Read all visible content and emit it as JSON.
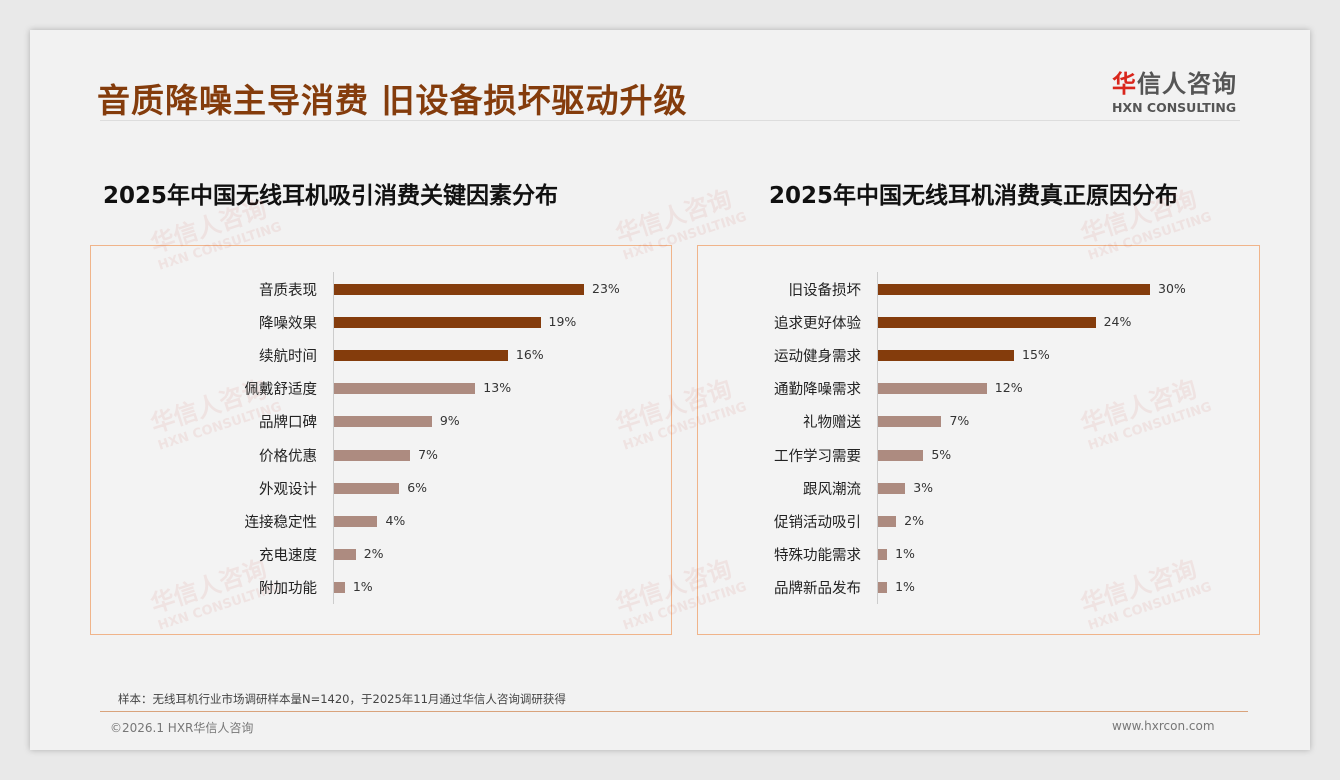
{
  "header": {
    "title": "音质降噪主导消费 旧设备损坏驱动升级",
    "logo_cn_red": "华",
    "logo_cn": "信人咨询",
    "logo_en": "HXN CONSULTING"
  },
  "watermark": {
    "cn": "华信人咨询",
    "en": "HXN CONSULTING"
  },
  "colors": {
    "dark": "#843c0c",
    "light": "#ad8b80"
  },
  "chart_data": [
    {
      "type": "bar",
      "orientation": "horizontal",
      "title": "2025年中国无线耳机吸引消费关键因素分布",
      "categories": [
        "音质表现",
        "降噪效果",
        "续航时间",
        "佩戴舒适度",
        "品牌口碑",
        "价格优惠",
        "外观设计",
        "连接稳定性",
        "充电速度",
        "附加功能"
      ],
      "values": [
        23,
        19,
        16,
        13,
        9,
        7,
        6,
        4,
        2,
        1
      ],
      "labels": [
        "23%",
        "19%",
        "16%",
        "13%",
        "9%",
        "7%",
        "6%",
        "4%",
        "2%",
        "1%"
      ],
      "highlight_count": 3,
      "unit": "%"
    },
    {
      "type": "bar",
      "orientation": "horizontal",
      "title": "2025年中国无线耳机消费真正原因分布",
      "categories": [
        "旧设备损坏",
        "追求更好体验",
        "运动健身需求",
        "通勤降噪需求",
        "礼物赠送",
        "工作学习需要",
        "跟风潮流",
        "促销活动吸引",
        "特殊功能需求",
        "品牌新品发布"
      ],
      "values": [
        30,
        24,
        15,
        12,
        7,
        5,
        3,
        2,
        1,
        1
      ],
      "labels": [
        "30%",
        "24%",
        "15%",
        "12%",
        "7%",
        "5%",
        "3%",
        "2%",
        "1%",
        "1%"
      ],
      "highlight_count": 3,
      "unit": "%"
    }
  ],
  "footer": {
    "note": "样本：无线耳机行业市场调研样本量N=1420，于2025年11月通过华信人咨询调研获得",
    "copyright": "©2026.1 HXR华信人咨询",
    "url": "www.hxrcon.com"
  }
}
